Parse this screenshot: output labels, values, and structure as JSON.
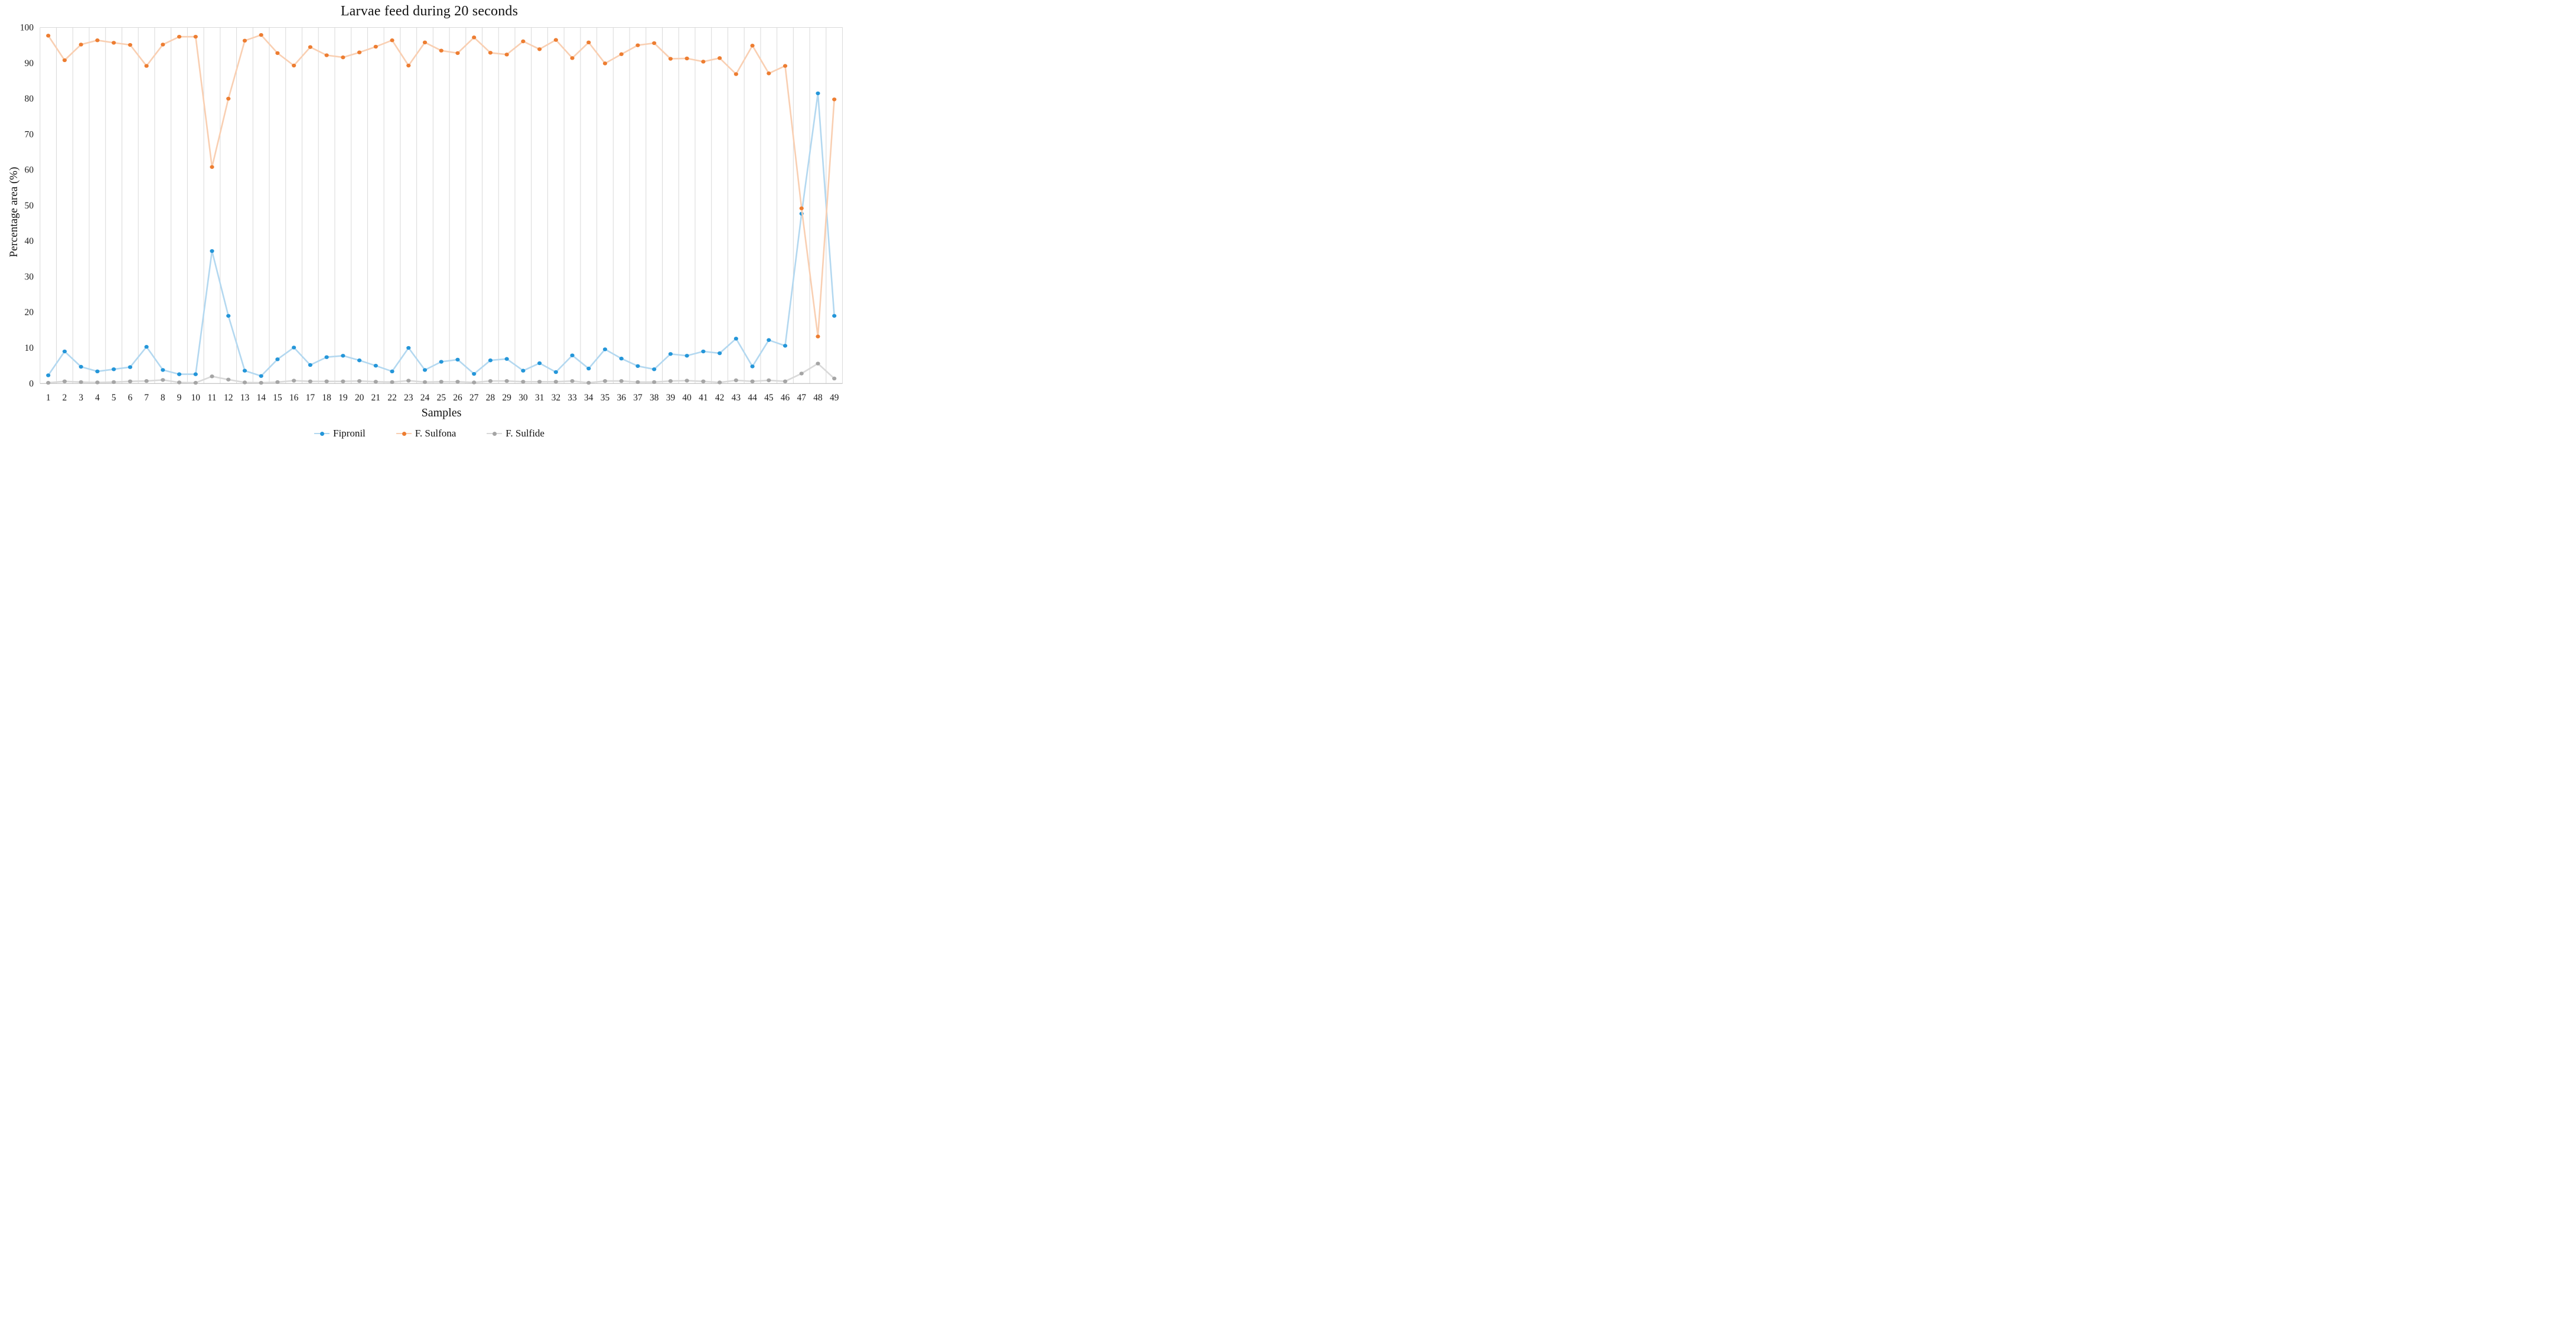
{
  "figure": {
    "title": "Larvae feed during 20 seconds",
    "xlabel": "Samples",
    "ylabel": "Percentage area (%)"
  },
  "chart_data": {
    "type": "line",
    "title": "Larvae feed during 20 seconds",
    "xlabel": "Samples",
    "ylabel": "Percentage area (%)",
    "ylim": [
      0,
      100
    ],
    "ytick_step": 10,
    "yticks": [
      0,
      10,
      20,
      30,
      40,
      50,
      60,
      70,
      80,
      90,
      100
    ],
    "grid": "vertical-only",
    "legend_position": "bottom",
    "axis_color": "#bfbfbf",
    "grid_color": "#d9d9d9",
    "tick_label_color": "#1a1a1a",
    "categories": [
      "1",
      "2",
      "3",
      "4",
      "5",
      "6",
      "7",
      "8",
      "9",
      "10",
      "11",
      "12",
      "13",
      "14",
      "15",
      "16",
      "17",
      "18",
      "19",
      "20",
      "21",
      "22",
      "23",
      "24",
      "25",
      "26",
      "27",
      "28",
      "29",
      "30",
      "31",
      "32",
      "33",
      "34",
      "35",
      "36",
      "37",
      "38",
      "39",
      "40",
      "41",
      "42",
      "43",
      "44",
      "45",
      "46",
      "47",
      "48",
      "49"
    ],
    "series": [
      {
        "name": "Fipronil",
        "marker_color": "#2496d9",
        "line_color": "#b3d8f0",
        "values": [
          2.3,
          9,
          4.7,
          3.4,
          4,
          4.6,
          10.3,
          3.8,
          2.6,
          2.6,
          37.2,
          19,
          3.6,
          2.1,
          6.8,
          10.1,
          5.2,
          7.4,
          7.8,
          6.5,
          5,
          3.4,
          10,
          3.8,
          6.1,
          6.7,
          2.7,
          6.5,
          6.9,
          3.6,
          5.7,
          3.2,
          7.9,
          4.2,
          9.6,
          7,
          4.9,
          4,
          8.3,
          7.8,
          9,
          8.5,
          12.6,
          4.8,
          12.2,
          10.6,
          47.7,
          81.5,
          19
        ]
      },
      {
        "name": "F. Sulfona",
        "marker_color": "#ed7d31",
        "line_color": "#f9cfb2",
        "values": [
          97.7,
          90.8,
          95.2,
          96.4,
          95.7,
          95.1,
          89.2,
          95.2,
          97.4,
          97.4,
          60.8,
          80,
          96.3,
          97.9,
          92.8,
          89.3,
          94.5,
          92.2,
          91.6,
          93,
          94.6,
          96.4,
          89.3,
          95.8,
          93.5,
          92.8,
          97.2,
          92.9,
          92.4,
          96.1,
          93.9,
          96.5,
          91.4,
          95.8,
          89.9,
          92.5,
          95,
          95.6,
          91.2,
          91.3,
          90.4,
          91.4,
          86.9,
          94.9,
          87.1,
          89.2,
          49.2,
          13.2,
          79.8
        ]
      },
      {
        "name": "F. Sulfide",
        "marker_color": "#a5a5a5",
        "line_color": "#d9d9d9",
        "values": [
          0.2,
          0.6,
          0.4,
          0.3,
          0.4,
          0.6,
          0.7,
          1,
          0.3,
          0.2,
          2,
          1.1,
          0.3,
          0.2,
          0.4,
          0.8,
          0.6,
          0.6,
          0.6,
          0.7,
          0.5,
          0.4,
          0.8,
          0.4,
          0.5,
          0.5,
          0.3,
          0.7,
          0.7,
          0.5,
          0.5,
          0.5,
          0.7,
          0.2,
          0.7,
          0.7,
          0.4,
          0.4,
          0.7,
          0.8,
          0.6,
          0.3,
          0.9,
          0.6,
          0.9,
          0.6,
          2.8,
          5.6,
          1.4
        ]
      }
    ]
  }
}
